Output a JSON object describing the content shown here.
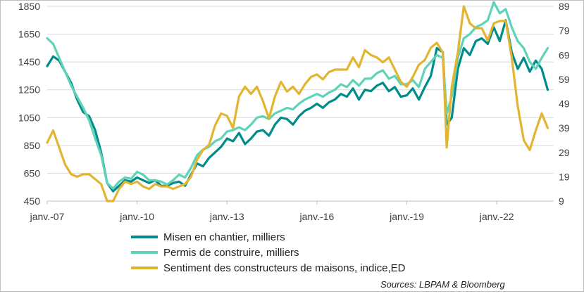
{
  "chart_data": {
    "type": "line",
    "title": "",
    "source": "Sources: LBPAM & Bloomberg",
    "x_labels": [
      "janv.-07",
      "janv.-10",
      "janv.-13",
      "janv.-16",
      "janv.-19",
      "janv.-22"
    ],
    "x_range": [
      2007.0,
      2023.9
    ],
    "y_left": {
      "ticks": [
        "1850",
        "1650",
        "1450",
        "1250",
        "1050",
        "850",
        "650",
        "450"
      ],
      "range": [
        450,
        1850
      ]
    },
    "y_right": {
      "ticks": [
        "89",
        "79",
        "69",
        "59",
        "49",
        "39",
        "29",
        "19",
        "9"
      ],
      "range": [
        9,
        89
      ]
    },
    "grid": true,
    "legend_position": "bottom-left",
    "series": [
      {
        "name": "Misen en chantier, milliers",
        "axis": "left",
        "color": "#008B8B",
        "x": [
          2007.0,
          2007.2,
          2007.4,
          2007.6,
          2007.8,
          2008.0,
          2008.2,
          2008.4,
          2008.6,
          2008.8,
          2009.0,
          2009.2,
          2009.4,
          2009.6,
          2009.8,
          2010.0,
          2010.2,
          2010.4,
          2010.6,
          2010.8,
          2011.0,
          2011.2,
          2011.4,
          2011.6,
          2011.8,
          2012.0,
          2012.2,
          2012.4,
          2012.6,
          2012.8,
          2013.0,
          2013.2,
          2013.4,
          2013.6,
          2013.8,
          2014.0,
          2014.2,
          2014.4,
          2014.6,
          2014.8,
          2015.0,
          2015.2,
          2015.4,
          2015.6,
          2015.8,
          2016.0,
          2016.2,
          2016.4,
          2016.6,
          2016.8,
          2017.0,
          2017.2,
          2017.4,
          2017.6,
          2017.8,
          2018.0,
          2018.2,
          2018.4,
          2018.6,
          2018.8,
          2019.0,
          2019.2,
          2019.4,
          2019.6,
          2019.8,
          2020.0,
          2020.2,
          2020.33,
          2020.5,
          2020.7,
          2020.9,
          2021.1,
          2021.3,
          2021.5,
          2021.7,
          2021.9,
          2022.1,
          2022.3,
          2022.5,
          2022.7,
          2022.9,
          2023.1,
          2023.3,
          2023.5,
          2023.7
        ],
        "values": [
          1420,
          1490,
          1460,
          1380,
          1300,
          1180,
          1090,
          1060,
          960,
          800,
          580,
          520,
          560,
          600,
          590,
          620,
          600,
          580,
          600,
          560,
          560,
          580,
          590,
          560,
          640,
          720,
          700,
          760,
          800,
          840,
          900,
          880,
          940,
          860,
          900,
          950,
          960,
          920,
          1000,
          1050,
          1040,
          1000,
          1060,
          1100,
          1120,
          1150,
          1120,
          1160,
          1180,
          1220,
          1200,
          1260,
          1180,
          1250,
          1240,
          1280,
          1300,
          1240,
          1270,
          1200,
          1210,
          1260,
          1180,
          1270,
          1350,
          1550,
          1520,
          1000,
          1050,
          1400,
          1550,
          1500,
          1600,
          1620,
          1580,
          1700,
          1600,
          1750,
          1520,
          1400,
          1480,
          1380,
          1460,
          1400,
          1250
        ]
      },
      {
        "name": "Permis de construire, milliers",
        "axis": "left",
        "color": "#5FD3B8",
        "x": [
          2007.0,
          2007.2,
          2007.4,
          2007.6,
          2007.8,
          2008.0,
          2008.2,
          2008.4,
          2008.6,
          2008.8,
          2009.0,
          2009.2,
          2009.4,
          2009.6,
          2009.8,
          2010.0,
          2010.2,
          2010.4,
          2010.6,
          2010.8,
          2011.0,
          2011.2,
          2011.4,
          2011.6,
          2011.8,
          2012.0,
          2012.2,
          2012.4,
          2012.6,
          2012.8,
          2013.0,
          2013.2,
          2013.4,
          2013.6,
          2013.8,
          2014.0,
          2014.2,
          2014.4,
          2014.6,
          2014.8,
          2015.0,
          2015.2,
          2015.4,
          2015.6,
          2015.8,
          2016.0,
          2016.2,
          2016.4,
          2016.6,
          2016.8,
          2017.0,
          2017.2,
          2017.4,
          2017.6,
          2017.8,
          2018.0,
          2018.2,
          2018.4,
          2018.6,
          2018.8,
          2019.0,
          2019.2,
          2019.4,
          2019.6,
          2019.8,
          2020.0,
          2020.2,
          2020.33,
          2020.5,
          2020.7,
          2020.9,
          2021.1,
          2021.3,
          2021.5,
          2021.7,
          2021.9,
          2022.1,
          2022.3,
          2022.5,
          2022.7,
          2022.9,
          2023.1,
          2023.3,
          2023.5,
          2023.7
        ],
        "values": [
          1620,
          1580,
          1480,
          1380,
          1280,
          1200,
          1120,
          1030,
          900,
          780,
          580,
          540,
          590,
          620,
          610,
          660,
          640,
          600,
          600,
          590,
          570,
          600,
          640,
          620,
          690,
          780,
          820,
          840,
          880,
          900,
          950,
          960,
          980,
          960,
          1000,
          1050,
          1060,
          1040,
          1080,
          1100,
          1120,
          1110,
          1150,
          1180,
          1200,
          1220,
          1200,
          1230,
          1250,
          1290,
          1270,
          1320,
          1280,
          1330,
          1330,
          1370,
          1390,
          1330,
          1350,
          1290,
          1290,
          1320,
          1270,
          1400,
          1450,
          1500,
          1480,
          1080,
          1200,
          1480,
          1620,
          1650,
          1700,
          1720,
          1750,
          1880,
          1800,
          1830,
          1700,
          1600,
          1550,
          1450,
          1400,
          1480,
          1550
        ]
      },
      {
        "name": "Sentiment des constructeurs de maisons, indice,ED",
        "axis": "right",
        "color": "#E1B530",
        "x": [
          2007.0,
          2007.2,
          2007.4,
          2007.6,
          2007.8,
          2008.0,
          2008.2,
          2008.4,
          2008.6,
          2008.8,
          2009.0,
          2009.2,
          2009.4,
          2009.6,
          2009.8,
          2010.0,
          2010.2,
          2010.4,
          2010.6,
          2010.8,
          2011.0,
          2011.2,
          2011.4,
          2011.6,
          2011.8,
          2012.0,
          2012.2,
          2012.4,
          2012.6,
          2012.8,
          2013.0,
          2013.2,
          2013.4,
          2013.6,
          2013.8,
          2014.0,
          2014.2,
          2014.4,
          2014.6,
          2014.8,
          2015.0,
          2015.2,
          2015.4,
          2015.6,
          2015.8,
          2016.0,
          2016.2,
          2016.4,
          2016.6,
          2016.8,
          2017.0,
          2017.2,
          2017.4,
          2017.6,
          2017.8,
          2018.0,
          2018.2,
          2018.4,
          2018.6,
          2018.8,
          2019.0,
          2019.2,
          2019.4,
          2019.6,
          2019.8,
          2020.0,
          2020.2,
          2020.33,
          2020.5,
          2020.7,
          2020.9,
          2021.1,
          2021.3,
          2021.5,
          2021.7,
          2021.9,
          2022.1,
          2022.3,
          2022.5,
          2022.7,
          2022.9,
          2023.1,
          2023.3,
          2023.5,
          2023.7
        ],
        "values": [
          33,
          38,
          31,
          24,
          20,
          19,
          20,
          20,
          18,
          16,
          9,
          9,
          14,
          17,
          16,
          17,
          15,
          14,
          16,
          15,
          15,
          14,
          15,
          16,
          19,
          26,
          30,
          32,
          40,
          45,
          44,
          39,
          52,
          56,
          53,
          56,
          50,
          43,
          52,
          58,
          54,
          56,
          53,
          57,
          60,
          61,
          59,
          62,
          63,
          63,
          63,
          68,
          64,
          71,
          69,
          68,
          66,
          68,
          63,
          58,
          56,
          60,
          65,
          67,
          72,
          74,
          70,
          31,
          56,
          70,
          89,
          82,
          80,
          80,
          75,
          82,
          83,
          83,
          68,
          48,
          34,
          30,
          38,
          45,
          39
        ]
      }
    ]
  }
}
